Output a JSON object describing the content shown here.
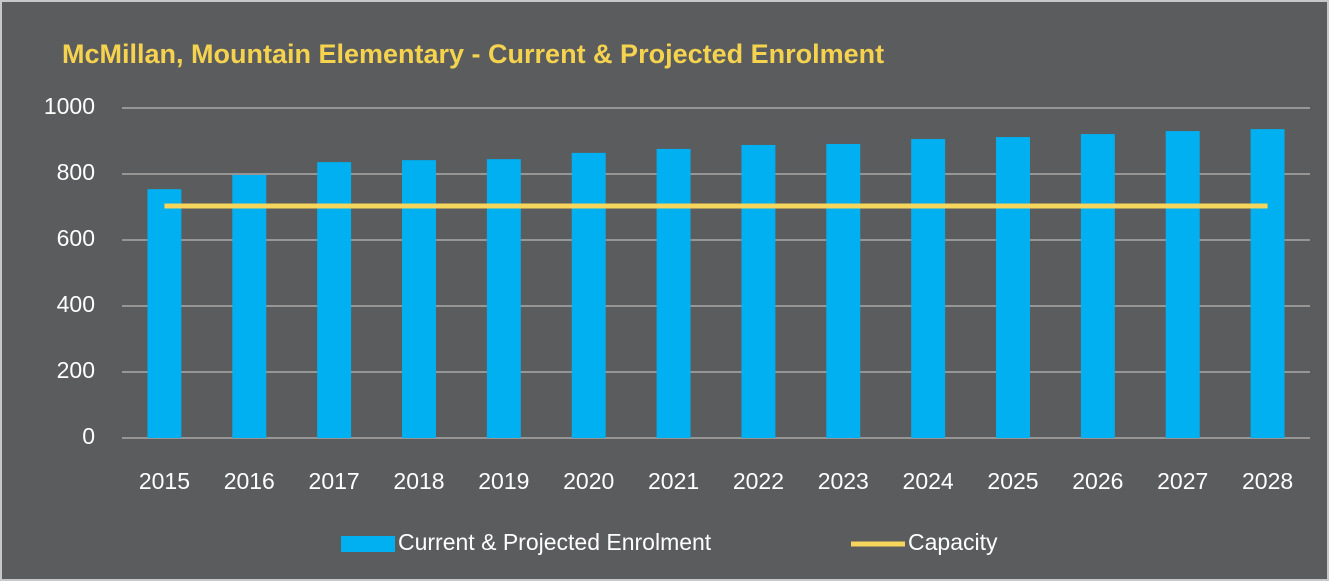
{
  "chart_data": {
    "type": "bar",
    "title": "McMillan, Mountain Elementary - Current & Projected Enrolment",
    "categories": [
      "2015",
      "2016",
      "2017",
      "2018",
      "2019",
      "2020",
      "2021",
      "2022",
      "2023",
      "2024",
      "2025",
      "2026",
      "2027",
      "2028"
    ],
    "series": [
      {
        "name": "Current & Projected Enrolment",
        "type": "bar",
        "color": "#00b0f0",
        "values": [
          754,
          797,
          836,
          842,
          845,
          864,
          876,
          888,
          891,
          906,
          912,
          921,
          930,
          936
        ]
      },
      {
        "name": "Capacity",
        "type": "line",
        "color": "#f5d55c",
        "values": [
          703,
          703,
          703,
          703,
          703,
          703,
          703,
          703,
          703,
          703,
          703,
          703,
          703,
          703
        ]
      }
    ],
    "ylim": [
      0,
      1000
    ],
    "yticks": [
      0,
      200,
      400,
      600,
      800,
      1000
    ],
    "grid": true,
    "legend": "bottom"
  }
}
